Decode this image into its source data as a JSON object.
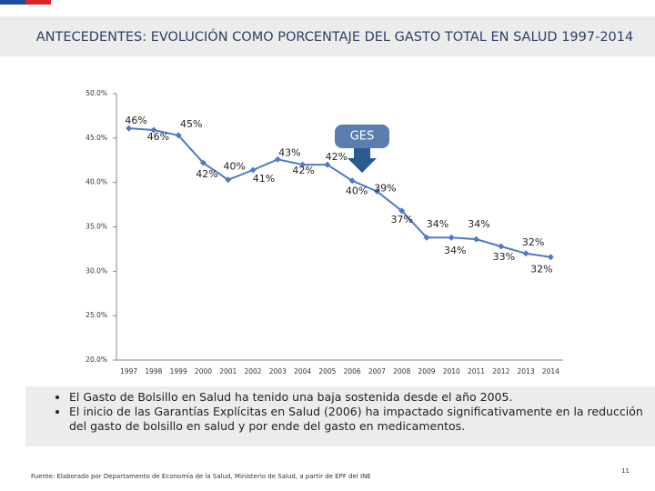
{
  "chart_data": {
    "type": "line",
    "title": "ANTECEDENTES: EVOLUCIÓN COMO PORCENTAJE DEL GASTO TOTAL EN SALUD 1997-2014",
    "categories": [
      "1997",
      "1998",
      "1999",
      "2000",
      "2001",
      "2002",
      "2003",
      "2004",
      "2005",
      "2006",
      "2007",
      "2008",
      "2009",
      "2010",
      "2011",
      "2012",
      "2013",
      "2014"
    ],
    "values": [
      46.1,
      45.9,
      45.3,
      42.2,
      40.3,
      41.4,
      42.6,
      42.0,
      42.0,
      40.2,
      39.0,
      36.8,
      33.8,
      33.8,
      33.6,
      32.8,
      32.0,
      31.6
    ],
    "value_labels": [
      "46%",
      "46%",
      "45%",
      "42%",
      "40%",
      "41%",
      "43%",
      "42%",
      "42%",
      "40%",
      "39%",
      "37%",
      "34%",
      "34%",
      "34%",
      "33%",
      "32%",
      "32%"
    ],
    "color": "#4f7ac7",
    "ylim": [
      20,
      50
    ],
    "yticks": [
      {
        "value": 20,
        "label": "20.0%"
      },
      {
        "value": 25,
        "label": "25.0%"
      },
      {
        "value": 30,
        "label": "30.0%"
      },
      {
        "value": 35,
        "label": "35.0%"
      },
      {
        "value": 40,
        "label": "40.0%"
      },
      {
        "value": 45,
        "label": "45.0%"
      },
      {
        "value": 50,
        "label": "50.0%"
      }
    ],
    "annotation": "GES",
    "bullets": [
      "El Gasto de Bolsillo en Salud ha tenido una baja sostenida desde el año 2005.",
      "El inicio de las Garantías Explícitas en Salud (2006) ha impactado significativamente en la reducción del gasto de bolsillo en salud y por ende del gasto en medicamentos."
    ],
    "source": "Fuente: Elaborado por Departamento de Economía de la Salud, Ministerio de Salud, a partir de EPF del INE",
    "page_number": "11"
  }
}
